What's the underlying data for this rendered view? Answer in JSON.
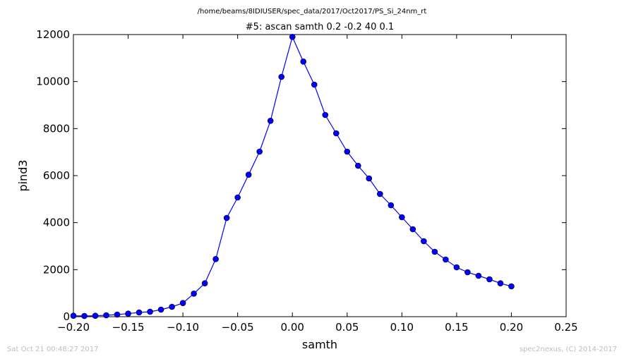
{
  "figure": {
    "suptitle": "/home/beams/8IDIUSER/spec_data/2017/Oct2017/PS_Si_24nm_rt",
    "footer_left": "Sat Oct 21 00:48:27 2017",
    "footer_right": "spec2nexus, (C) 2014-2017"
  },
  "chart_data": {
    "type": "line",
    "title": "#5: ascan  samth 0.2 -0.2  40 0.1",
    "xlabel": "samth",
    "ylabel": "pind3",
    "xlim": [
      -0.2,
      0.25
    ],
    "ylim": [
      0,
      12000
    ],
    "xticks": [
      -0.2,
      -0.15,
      -0.1,
      -0.05,
      0.0,
      0.05,
      0.1,
      0.15,
      0.2,
      0.25
    ],
    "xtick_labels": [
      "−0.20",
      "−0.15",
      "−0.10",
      "−0.05",
      "0.00",
      "0.05",
      "0.10",
      "0.15",
      "0.20",
      "0.25"
    ],
    "yticks": [
      0,
      2000,
      4000,
      6000,
      8000,
      10000,
      12000
    ],
    "ytick_labels": [
      "0",
      "2000",
      "4000",
      "6000",
      "8000",
      "10000",
      "12000"
    ],
    "grid": false,
    "marker": "circle",
    "color": "#0000ff",
    "series": [
      {
        "x": [
          -0.2,
          -0.19,
          -0.18,
          -0.17,
          -0.16,
          -0.15,
          -0.14,
          -0.13,
          -0.12,
          -0.11,
          -0.1,
          -0.09,
          -0.08,
          -0.07,
          -0.06,
          -0.05,
          -0.04,
          -0.03,
          -0.02,
          -0.01,
          0.0,
          0.01,
          0.02,
          0.03,
          0.04,
          0.05,
          0.06,
          0.07,
          0.08,
          0.09,
          0.1,
          0.11,
          0.12,
          0.13,
          0.14,
          0.15,
          0.16,
          0.17,
          0.18,
          0.19,
          0.2
        ],
        "y": [
          40,
          30,
          40,
          60,
          90,
          130,
          180,
          210,
          300,
          420,
          580,
          980,
          1420,
          2450,
          4200,
          5070,
          6040,
          7020,
          8330,
          10200,
          11900,
          10850,
          9870,
          8580,
          7800,
          7020,
          6420,
          5880,
          5220,
          4740,
          4230,
          3720,
          3210,
          2760,
          2430,
          2100,
          1890,
          1740,
          1590,
          1420,
          1290
        ]
      }
    ]
  }
}
